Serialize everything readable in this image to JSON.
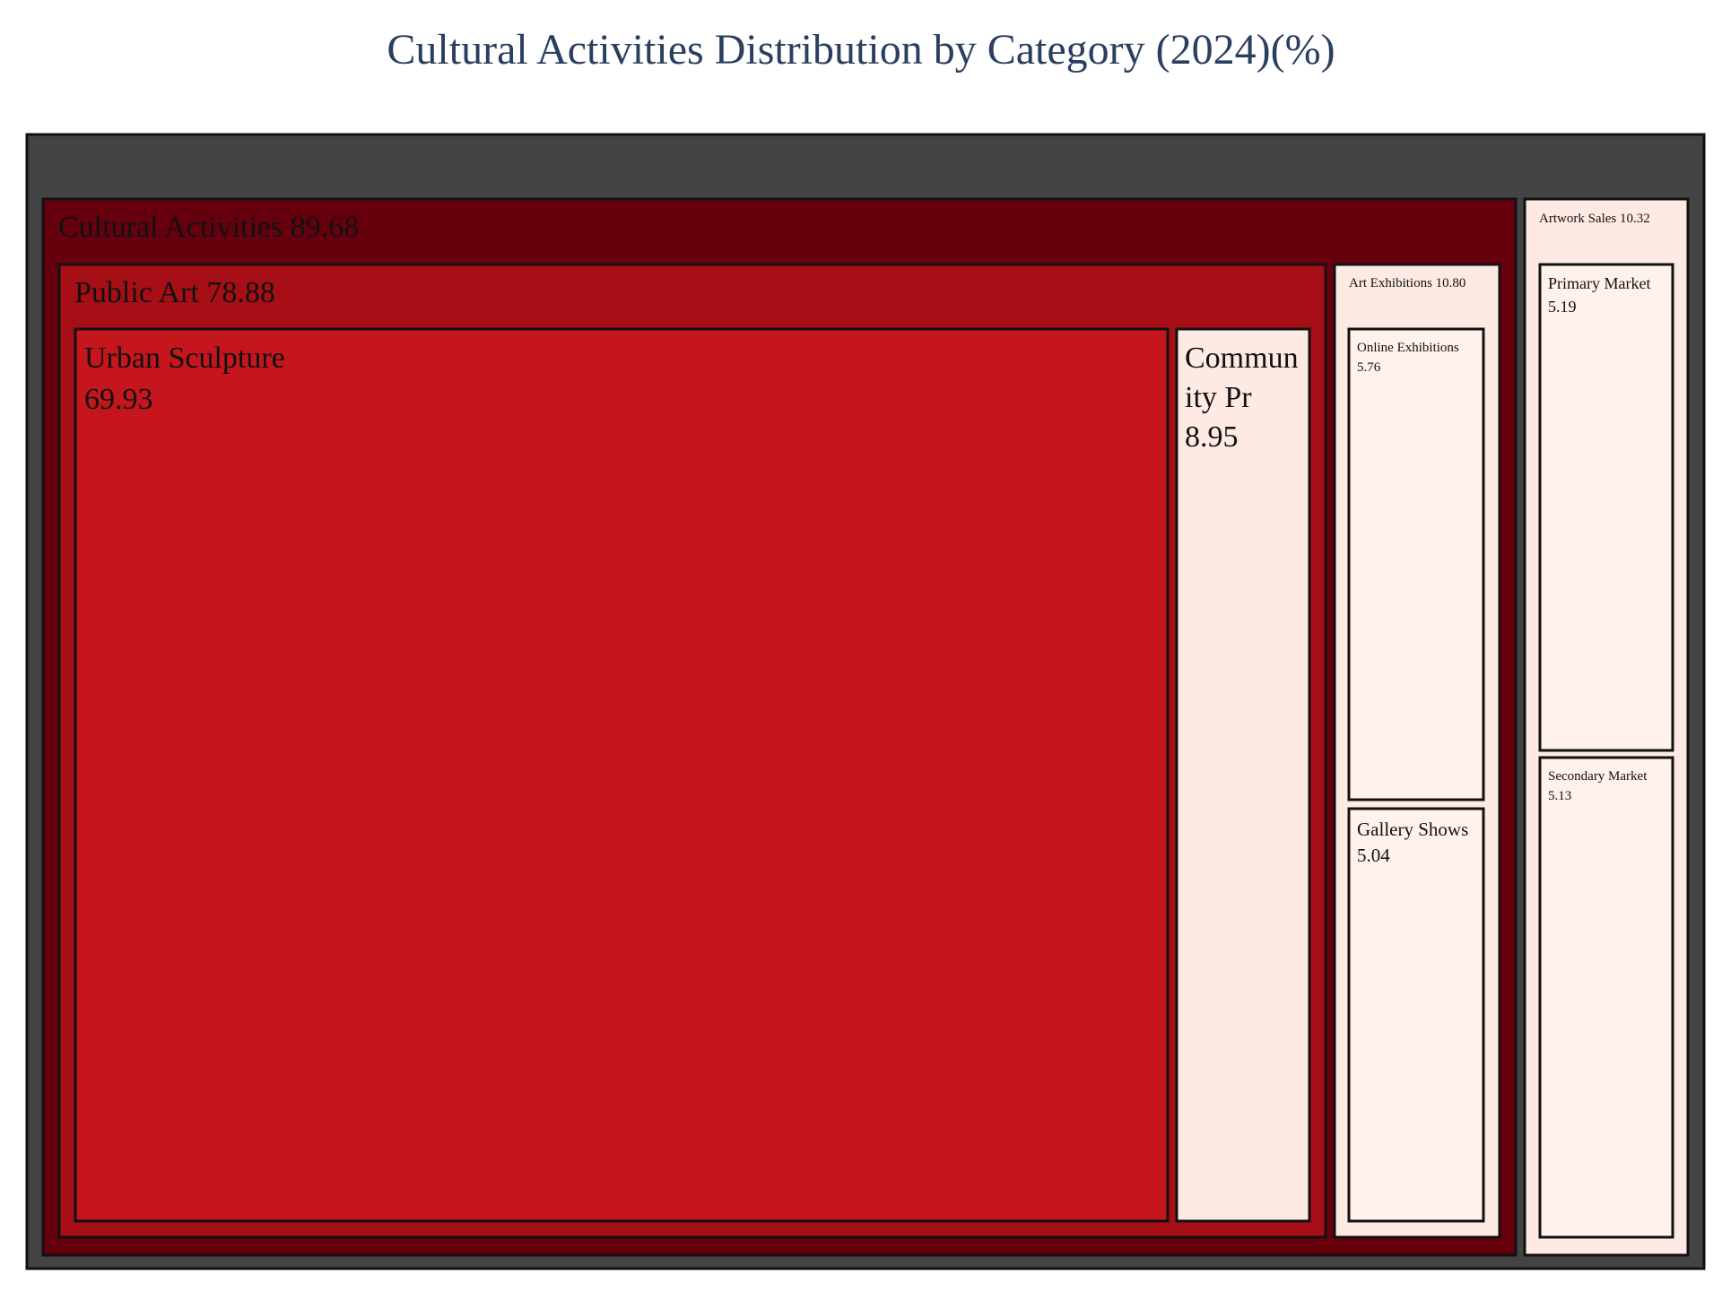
{
  "chart_data": {
    "type": "treemap",
    "title": "Cultural Activities Distribution by Category (2024)(%)",
    "colors": {
      "root": "#444444",
      "cultural_activities": "#67000d",
      "public_art": "#a50f15",
      "urban_sculpture": "#c4161c",
      "community": "#fdeae3",
      "light_panel": "#fff1ec",
      "stroke": "#111111"
    },
    "nodes": [
      {
        "name": "Cultural Activities",
        "label": "Cultural Activities 89.68",
        "value": 89.68,
        "parent": ""
      },
      {
        "name": "Artwork Sales",
        "label": "Artwork Sales 10.32",
        "value": 10.32,
        "parent": ""
      },
      {
        "name": "Public Art",
        "label": "Public Art 78.88",
        "value": 78.88,
        "parent": "Cultural Activities"
      },
      {
        "name": "Art Exhibitions",
        "label": "Art Exhibitions 10.80",
        "value": 10.8,
        "parent": "Cultural Activities"
      },
      {
        "name": "Urban Sculpture",
        "label_lines": [
          "Urban Sculpture",
          "69.93"
        ],
        "value": 69.93,
        "parent": "Public Art"
      },
      {
        "name": "Community Pr",
        "label_lines": [
          "Commun",
          "ity Pr",
          "8.95"
        ],
        "value": 8.95,
        "parent": "Public Art"
      },
      {
        "name": "Online Exhibitions",
        "label_lines": [
          "Online Exhibitions",
          "5.76"
        ],
        "value": 5.76,
        "parent": "Art Exhibitions"
      },
      {
        "name": "Gallery Shows",
        "label_lines": [
          "Gallery Shows",
          "5.04"
        ],
        "value": 5.04,
        "parent": "Art Exhibitions"
      },
      {
        "name": "Primary Market",
        "label_lines": [
          "Primary Market",
          "5.19"
        ],
        "value": 5.19,
        "parent": "Artwork Sales"
      },
      {
        "name": "Secondary Market",
        "label_lines": [
          "Secondary Market",
          "5.13"
        ],
        "value": 5.13,
        "parent": "Artwork Sales"
      }
    ]
  }
}
